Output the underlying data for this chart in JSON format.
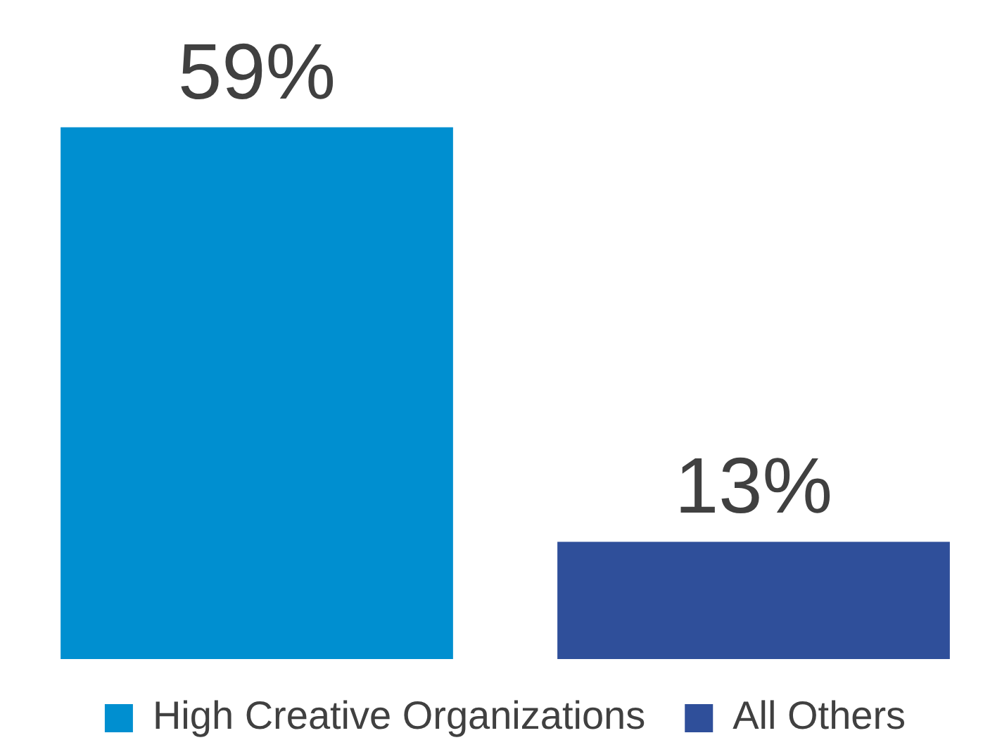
{
  "chart_data": {
    "type": "bar",
    "categories": [
      null
    ],
    "series": [
      {
        "name": "High Creative Organizations",
        "color": "#008fd0",
        "values": [
          59
        ],
        "value_labels": [
          "59%"
        ]
      },
      {
        "name": "All Others",
        "color": "#2f4f9a",
        "values": [
          13
        ],
        "value_labels": [
          "13%"
        ]
      }
    ],
    "legend": "bottom"
  }
}
